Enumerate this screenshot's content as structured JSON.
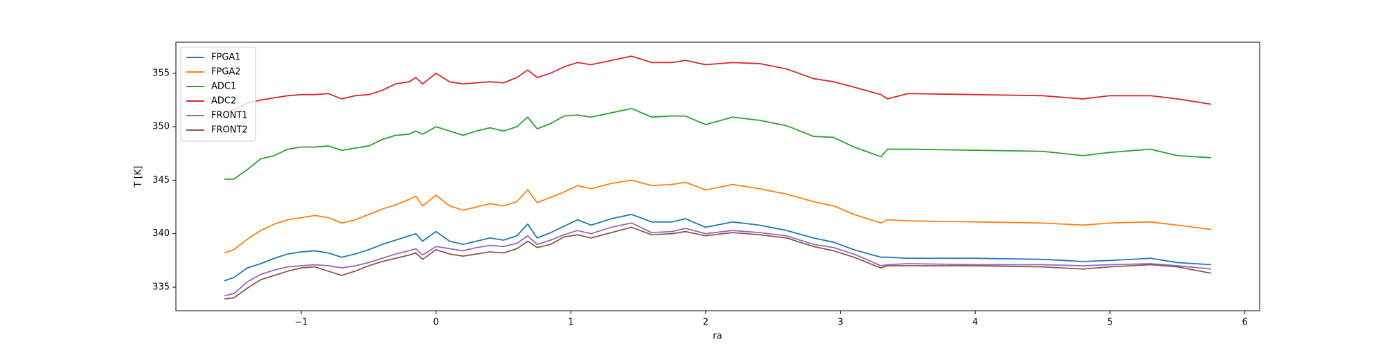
{
  "chart_data": {
    "type": "line",
    "x_label": "ra",
    "y_label": "T [K]",
    "x": [
      -1.57,
      -1.5,
      -1.4,
      -1.3,
      -1.2,
      -1.1,
      -1.0,
      -0.9,
      -0.8,
      -0.7,
      -0.6,
      -0.5,
      -0.4,
      -0.3,
      -0.2,
      -0.15,
      -0.1,
      0,
      0.1,
      0.2,
      0.3,
      0.4,
      0.5,
      0.6,
      0.68,
      0.75,
      0.85,
      0.95,
      1.05,
      1.15,
      1.3,
      1.45,
      1.6,
      1.75,
      1.85,
      2.0,
      2.2,
      2.4,
      2.6,
      2.8,
      2.95,
      3.1,
      3.3,
      3.35,
      3.5,
      4.0,
      4.5,
      4.8,
      5.0,
      5.3,
      5.5,
      5.75
    ],
    "series": [
      {
        "name": "FPGA1",
        "color": "#1f77b4",
        "values": [
          335.6,
          335.9,
          336.8,
          337.2,
          337.7,
          338.1,
          338.3,
          338.4,
          338.2,
          337.8,
          338.1,
          338.5,
          339.0,
          339.4,
          339.8,
          340.0,
          339.3,
          340.2,
          339.3,
          339.0,
          339.3,
          339.6,
          339.4,
          339.8,
          340.9,
          339.6,
          340.1,
          340.7,
          341.3,
          340.8,
          341.4,
          341.8,
          341.1,
          341.1,
          341.4,
          340.6,
          341.1,
          340.8,
          340.3,
          339.6,
          339.2,
          338.5,
          337.8,
          337.8,
          337.7,
          337.7,
          337.6,
          337.4,
          337.5,
          337.7,
          337.3,
          337.1
        ]
      },
      {
        "name": "FPGA2",
        "color": "#ff7f0e",
        "values": [
          338.2,
          338.5,
          339.5,
          340.3,
          340.9,
          341.3,
          341.5,
          341.7,
          341.5,
          341.0,
          341.3,
          341.8,
          342.3,
          342.7,
          343.2,
          343.5,
          342.6,
          343.6,
          342.6,
          342.2,
          342.5,
          342.8,
          342.6,
          343.0,
          344.1,
          342.9,
          343.4,
          343.9,
          344.5,
          344.2,
          344.7,
          345.0,
          344.5,
          344.6,
          344.8,
          344.1,
          344.6,
          344.2,
          343.7,
          343.0,
          342.6,
          341.8,
          341.0,
          341.3,
          341.2,
          341.1,
          341.0,
          340.8,
          341.0,
          341.1,
          340.8,
          340.4
        ]
      },
      {
        "name": "ADC1",
        "color": "#2ca02c",
        "values": [
          345.1,
          345.1,
          346,
          347,
          347.3,
          347.9,
          348.1,
          348.1,
          348.2,
          347.8,
          348,
          348.2,
          348.8,
          349.2,
          349.3,
          349.6,
          349.3,
          350,
          349.6,
          349.2,
          349.6,
          349.9,
          349.6,
          350,
          350.9,
          349.8,
          350.3,
          351,
          351.1,
          350.9,
          351.3,
          351.7,
          350.9,
          351,
          351,
          350.2,
          350.9,
          350.6,
          350.1,
          349.1,
          349,
          348.1,
          347.2,
          347.9,
          347.9,
          347.8,
          347.7,
          347.3,
          347.6,
          347.9,
          347.3,
          347.1
        ]
      },
      {
        "name": "ADC2",
        "color": "#d62728",
        "values": [
          351.3,
          351.6,
          352.2,
          352.5,
          352.7,
          352.9,
          353.0,
          353.0,
          353.1,
          352.6,
          352.9,
          353.0,
          353.4,
          354.0,
          354.2,
          354.6,
          354.0,
          355.0,
          354.2,
          354.0,
          354.1,
          354.2,
          354.1,
          354.6,
          355.3,
          354.6,
          355.0,
          355.6,
          356.0,
          355.8,
          356.2,
          356.6,
          356.0,
          356.0,
          356.2,
          355.8,
          356.0,
          355.9,
          355.4,
          354.5,
          354.2,
          353.7,
          353.0,
          352.6,
          353.1,
          353.0,
          352.9,
          352.6,
          352.9,
          352.9,
          352.6,
          352.1
        ]
      },
      {
        "name": "FRONT1",
        "color": "#9467bd",
        "values": [
          334.2,
          334.4,
          335.5,
          336.2,
          336.6,
          336.9,
          337.0,
          337.1,
          337.0,
          336.8,
          337.0,
          337.3,
          337.7,
          338.1,
          338.4,
          338.6,
          338.0,
          338.8,
          338.6,
          338.4,
          338.7,
          338.9,
          338.8,
          339.1,
          339.8,
          339.0,
          339.4,
          339.9,
          340.3,
          340.0,
          340.6,
          341.0,
          340.1,
          340.2,
          340.5,
          340.0,
          340.3,
          340.1,
          339.8,
          339.0,
          338.7,
          338.1,
          337.0,
          337.1,
          337.2,
          337.1,
          337.1,
          337.0,
          337.1,
          337.2,
          337.0,
          336.7
        ]
      },
      {
        "name": "FRONT2",
        "color": "#8c564b",
        "values": [
          333.9,
          334.0,
          334.9,
          335.7,
          336.1,
          336.5,
          336.8,
          336.9,
          336.5,
          336.1,
          336.5,
          337.0,
          337.4,
          337.7,
          338.0,
          338.2,
          337.6,
          338.5,
          338.1,
          337.9,
          338.1,
          338.3,
          338.2,
          338.6,
          339.3,
          338.7,
          339.0,
          339.7,
          339.9,
          339.6,
          340.1,
          340.6,
          339.9,
          340.0,
          340.2,
          339.8,
          340.1,
          339.9,
          339.6,
          338.8,
          338.4,
          337.8,
          336.8,
          337.0,
          337.0,
          337.0,
          336.9,
          336.7,
          336.9,
          337.1,
          336.9,
          336.3
        ]
      }
    ],
    "xlim": [
      -1.93,
      6.11
    ],
    "ylim": [
      332.8,
      357.9
    ],
    "xticks": [
      {
        "value": -1,
        "label": "−1"
      },
      0,
      1,
      2,
      3,
      4,
      5,
      6
    ],
    "yticks": [
      335,
      340,
      345,
      350,
      355
    ],
    "grid": false,
    "legend": "upper left"
  }
}
